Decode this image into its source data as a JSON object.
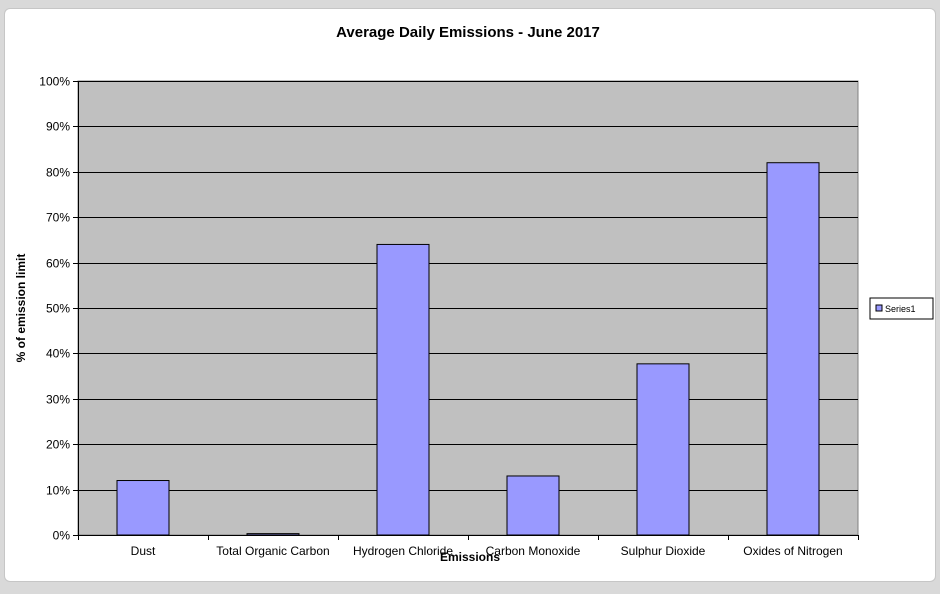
{
  "chart_data": {
    "type": "bar",
    "title": "Average Daily Emissions - June 2017",
    "xlabel": "Emissions",
    "ylabel": "% of emission limit",
    "categories": [
      "Dust",
      "Total Organic Carbon",
      "Hydrogen Chloride",
      "Carbon Monoxide",
      "Sulphur Dioxide",
      "Oxides of Nitrogen"
    ],
    "series": [
      {
        "name": "Series1",
        "values": [
          12,
          0.3,
          64,
          13,
          37.7,
          82
        ]
      }
    ],
    "ylim": [
      0,
      100
    ],
    "yticks": [
      "0%",
      "10%",
      "20%",
      "30%",
      "40%",
      "50%",
      "60%",
      "70%",
      "80%",
      "90%",
      "100%"
    ],
    "grid": true,
    "legend": "right",
    "colors": {
      "bar": "#9999ff",
      "plot_background": "#c0c0c0",
      "gridline": "#000000"
    }
  }
}
